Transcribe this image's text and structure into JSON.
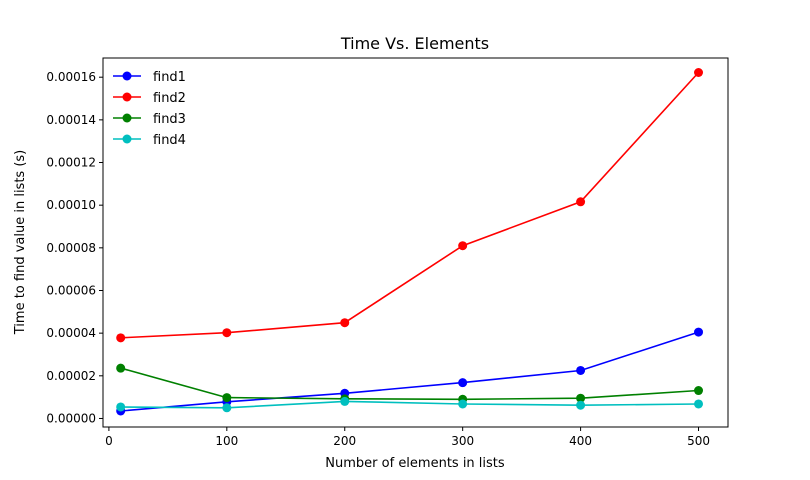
{
  "chart_data": {
    "type": "line",
    "title": "Time Vs. Elements",
    "xlabel": "Number of elements in lists",
    "ylabel": "Time to find value in lists (s)",
    "x": [
      10,
      100,
      200,
      300,
      400,
      500
    ],
    "xlim": [
      -5,
      525
    ],
    "ylim": [
      -4e-06,
      0.000169
    ],
    "xticks": [
      0,
      100,
      200,
      300,
      400,
      500
    ],
    "xtick_labels": [
      "0",
      "100",
      "200",
      "300",
      "400",
      "500"
    ],
    "yticks": [
      0,
      2e-05,
      4e-05,
      6e-05,
      8e-05,
      0.0001,
      0.00012,
      0.00014,
      0.00016
    ],
    "ytick_labels": [
      "0.00000",
      "0.00002",
      "0.00004",
      "0.00006",
      "0.00008",
      "0.00010",
      "0.00012",
      "0.00014",
      "0.00016"
    ],
    "legend_position": "top-left",
    "grid": false,
    "series": [
      {
        "name": "find1",
        "color": "#0000ff",
        "values": [
          3.5e-06,
          7.8e-06,
          1.18e-05,
          1.68e-05,
          2.25e-05,
          4.05e-05
        ]
      },
      {
        "name": "find2",
        "color": "#ff0000",
        "values": [
          3.78e-05,
          4.02e-05,
          4.49e-05,
          8.1e-05,
          0.0001016,
          0.0001622
        ]
      },
      {
        "name": "find3",
        "color": "#008000",
        "values": [
          2.36e-05,
          9.8e-06,
          9.2e-06,
          9e-06,
          9.5e-06,
          1.31e-05
        ]
      },
      {
        "name": "find4",
        "color": "#00bfbf",
        "values": [
          5.4e-06,
          5e-06,
          8e-06,
          6.8e-06,
          6.2e-06,
          6.8e-06
        ]
      }
    ]
  }
}
